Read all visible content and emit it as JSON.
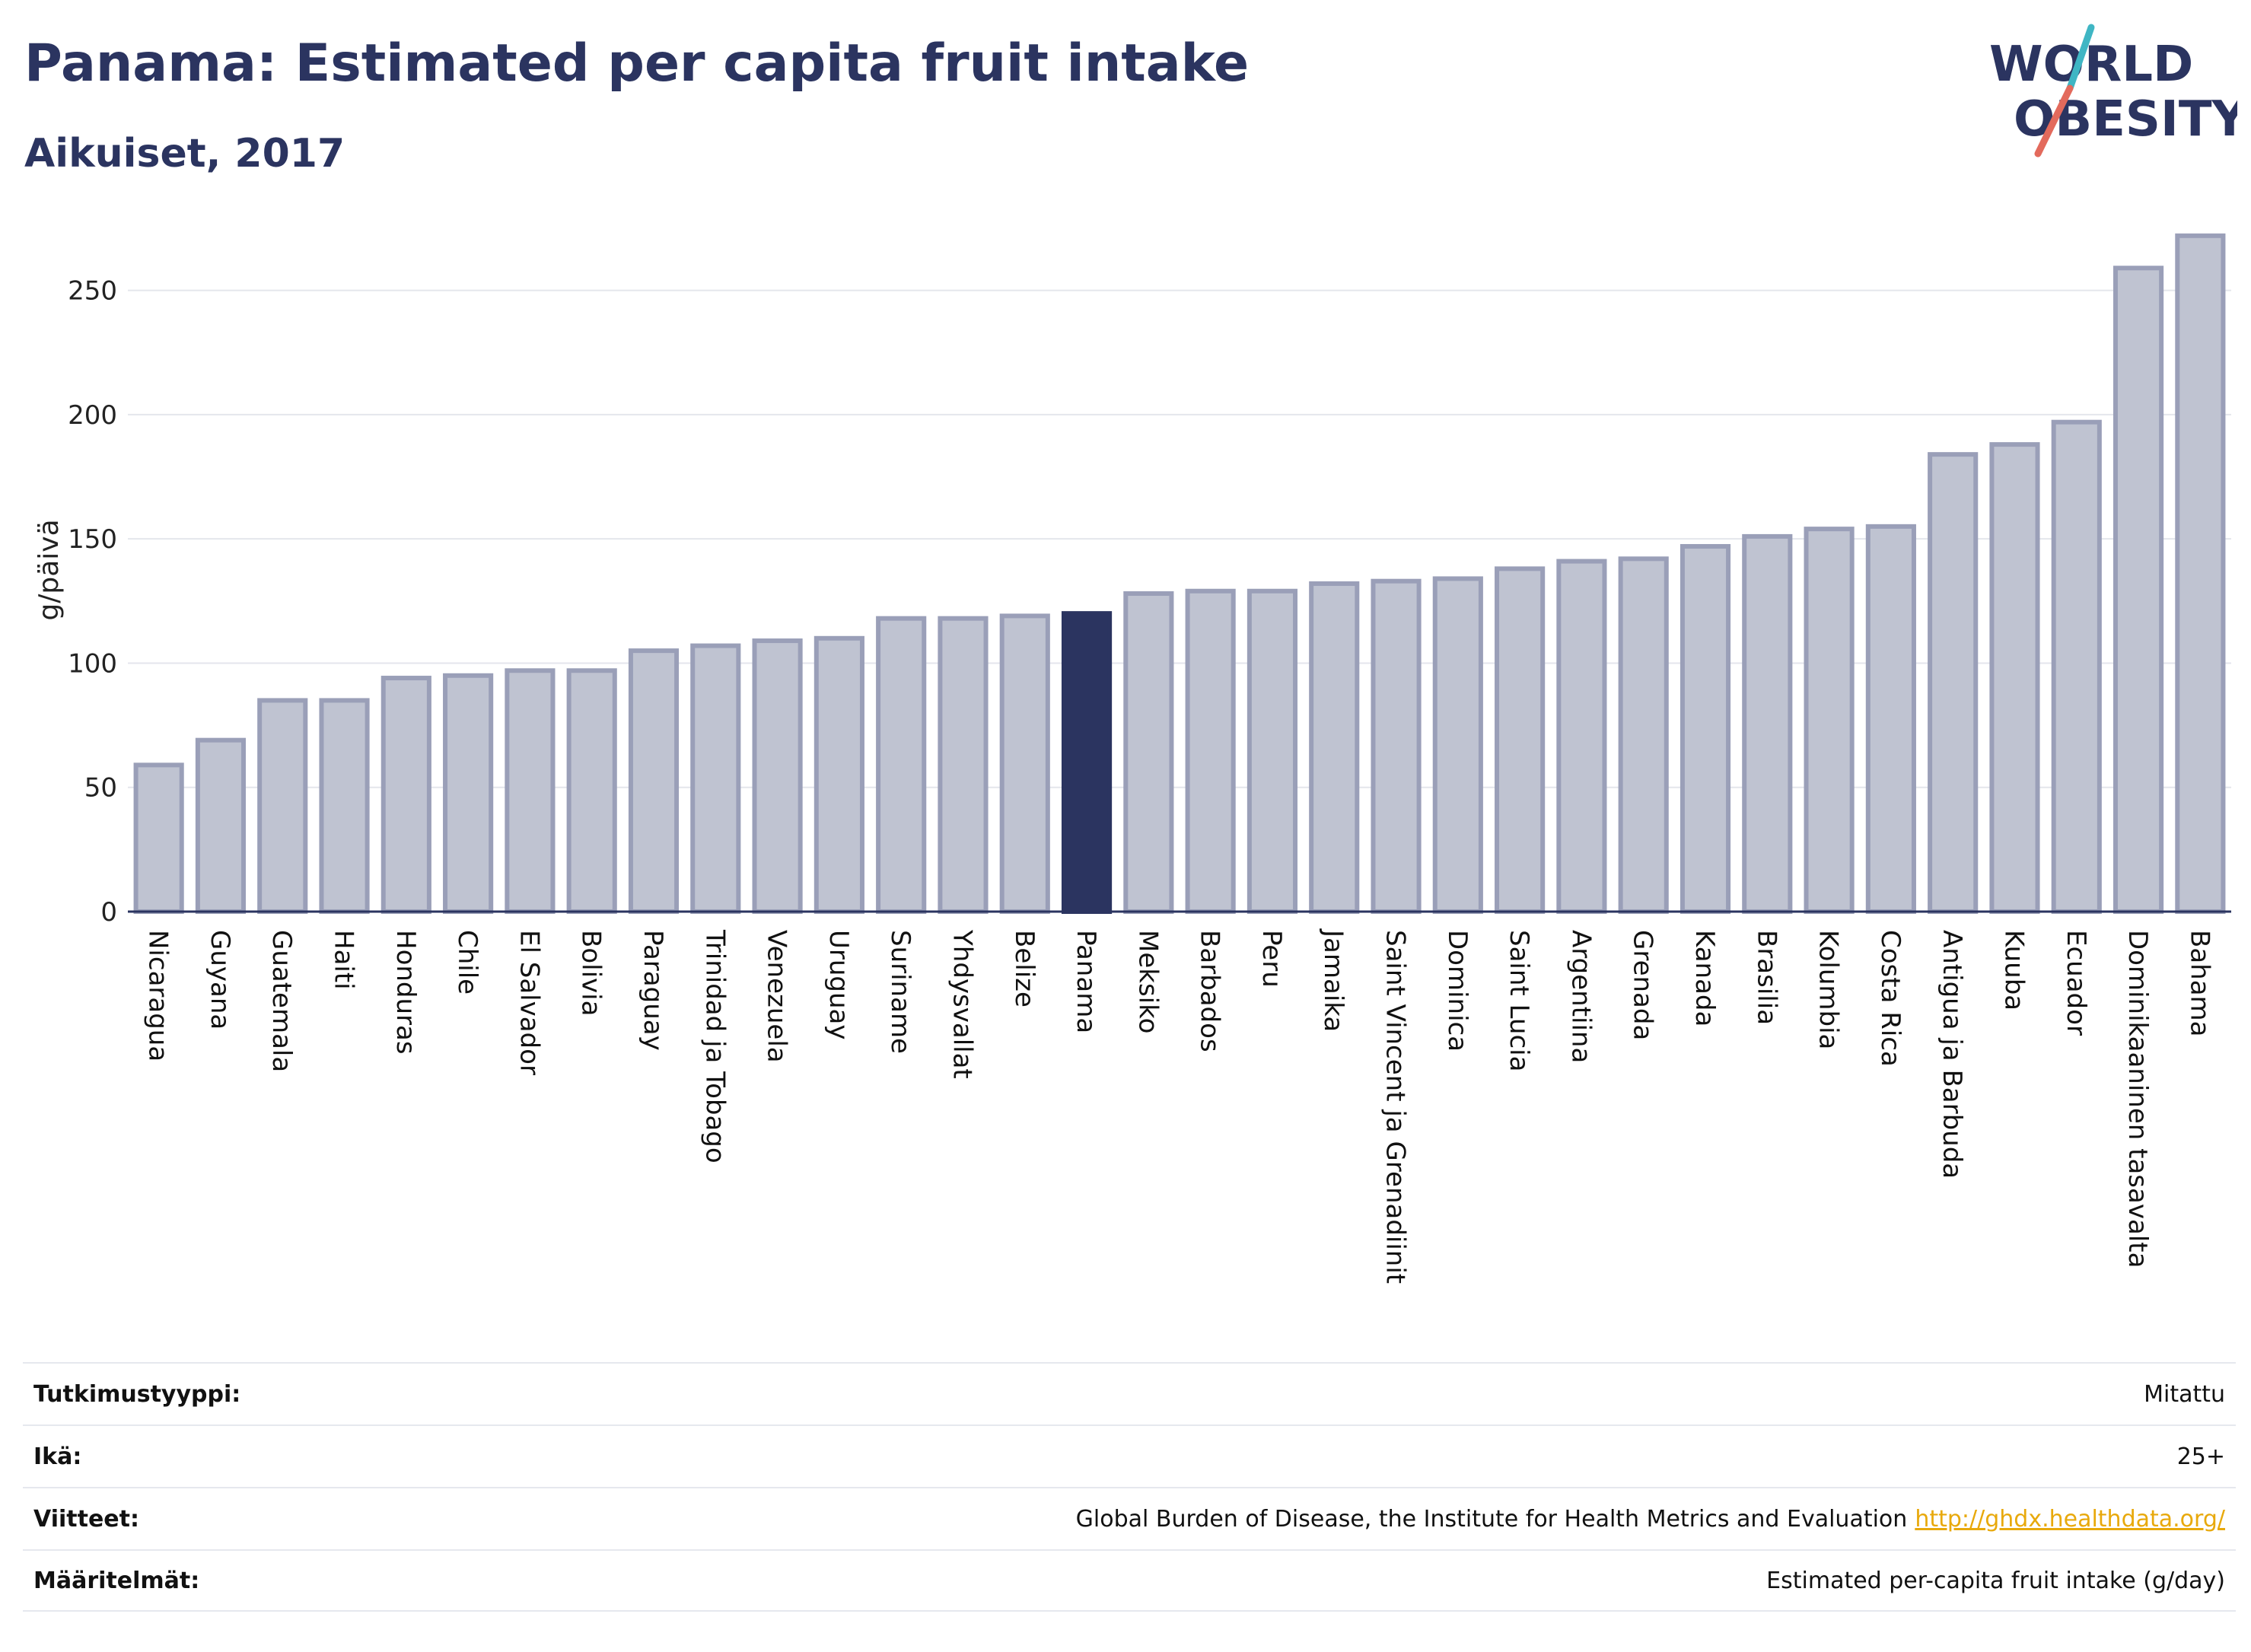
{
  "header": {
    "title": "Panama: Estimated per capita fruit intake",
    "subtitle": "Aikuiset, 2017"
  },
  "logo": {
    "line1": "WORLD",
    "line2": "OBESITY",
    "colors": {
      "text": "#2b3460",
      "slash_top": "#3fb6c4",
      "slash_bottom": "#e36a5c"
    }
  },
  "chart_data": {
    "type": "bar",
    "ylabel": "g/päivä",
    "ylim": [
      0,
      275
    ],
    "yticks": [
      0,
      50,
      100,
      150,
      200,
      250
    ],
    "grid": true,
    "highlight": "Panama",
    "colors": {
      "bar": "#bfc3d1",
      "bar_border": "#9a9fb8",
      "highlight": "#2b3460"
    },
    "categories": [
      "Nicaragua",
      "Guyana",
      "Guatemala",
      "Haiti",
      "Honduras",
      "Chile",
      "El Salvador",
      "Bolivia",
      "Paraguay",
      "Trinidad ja Tobago",
      "Venezuela",
      "Uruguay",
      "Suriname",
      "Yhdysvallat",
      "Belize",
      "Panama",
      "Meksiko",
      "Barbados",
      "Peru",
      "Jamaika",
      "Saint Vincent ja Grenadiinit",
      "Dominica",
      "Saint Lucia",
      "Argentiina",
      "Grenada",
      "Kanada",
      "Brasilia",
      "Kolumbia",
      "Costa Rica",
      "Antigua ja Barbuda",
      "Kuuba",
      "Ecuador",
      "Dominikaaninen tasavalta",
      "Bahama"
    ],
    "values": [
      59,
      69,
      85,
      85,
      94,
      95,
      97,
      97,
      105,
      107,
      109,
      110,
      118,
      118,
      119,
      120,
      128,
      129,
      129,
      132,
      133,
      134,
      138,
      141,
      142,
      147,
      151,
      154,
      155,
      184,
      188,
      197,
      259,
      272
    ]
  },
  "meta": [
    {
      "label": "Tutkimustyyppi:",
      "value": "Mitattu"
    },
    {
      "label": "Ikä:",
      "value": "25+"
    },
    {
      "label": "Viitteet:",
      "value": "Global Burden of Disease, the Institute for Health Metrics and Evaluation",
      "link": "http://ghdx.healthdata.org/"
    },
    {
      "label": "Määritelmät:",
      "value": "Estimated per-capita fruit intake (g/day)"
    }
  ]
}
